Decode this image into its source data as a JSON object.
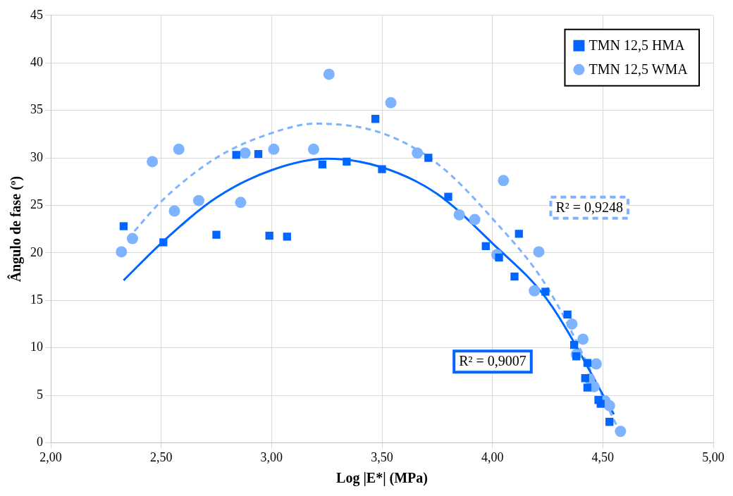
{
  "chart_data": {
    "type": "scatter",
    "xlabel": "Log |E*| (MPa)",
    "ylabel": "Ângulo de fase (º)",
    "xlim": [
      2,
      5
    ],
    "xticks": [
      {
        "value": 2,
        "label": "2,00"
      },
      {
        "value": 2.5,
        "label": "2,50"
      },
      {
        "value": 3,
        "label": "3,00"
      },
      {
        "value": 3.5,
        "label": "3,50"
      },
      {
        "value": 4,
        "label": "4,00"
      },
      {
        "value": 4.5,
        "label": "4,50"
      },
      {
        "value": 5,
        "label": "5,00"
      }
    ],
    "ylim": [
      0,
      45
    ],
    "yticks": [
      0,
      5,
      10,
      15,
      20,
      25,
      30,
      35,
      40,
      45
    ],
    "grid": true,
    "legend": "top right",
    "series": [
      {
        "name": "TMN 12,5 HMA",
        "color": "#0066ff",
        "marker": "square",
        "x": [
          2.33,
          2.51,
          2.75,
          2.84,
          2.94,
          2.99,
          3.07,
          3.23,
          3.34,
          3.47,
          3.5,
          3.71,
          3.8,
          3.97,
          4.03,
          4.1,
          4.12,
          4.24,
          4.34,
          4.37,
          4.38,
          4.43,
          4.42,
          4.43,
          4.48,
          4.49,
          4.53
        ],
        "values": [
          22.8,
          21.1,
          21.9,
          30.3,
          30.4,
          21.8,
          21.7,
          29.3,
          29.6,
          34.1,
          28.8,
          30.0,
          25.9,
          20.7,
          19.5,
          17.5,
          22.0,
          15.9,
          13.5,
          10.3,
          9.1,
          8.4,
          6.8,
          5.8,
          4.5,
          4.1,
          2.2
        ]
      },
      {
        "name": "TMN 12,5 WMA",
        "color": "#7eb3ff",
        "marker": "circle",
        "x": [
          2.32,
          2.37,
          2.46,
          2.56,
          2.58,
          2.67,
          2.86,
          2.88,
          3.01,
          3.19,
          3.26,
          3.54,
          3.66,
          3.85,
          3.92,
          4.02,
          4.05,
          4.19,
          4.21,
          4.36,
          4.38,
          4.41,
          4.47,
          4.44,
          4.46,
          4.51,
          4.53,
          4.58
        ],
        "values": [
          20.1,
          21.5,
          29.6,
          24.4,
          30.9,
          25.5,
          25.3,
          30.5,
          30.9,
          30.9,
          38.8,
          35.8,
          30.5,
          24.0,
          23.5,
          19.8,
          27.6,
          16.0,
          20.1,
          12.5,
          9.3,
          10.9,
          8.3,
          6.7,
          5.9,
          4.4,
          3.9,
          1.2
        ]
      },
      {
        "type": "line",
        "color": "#0066ff",
        "line_style": "solid",
        "marker": "none",
        "x": [
          2.33,
          2.5,
          2.75,
          3.0,
          3.25,
          3.5,
          3.75,
          4.0,
          4.25,
          4.55
        ],
        "values": [
          17.1,
          21.0,
          25.8,
          28.7,
          29.9,
          29.0,
          26.2,
          21.0,
          15.0,
          3.0
        ]
      },
      {
        "type": "line",
        "color": "#7eb3ff",
        "line_style": "dashed",
        "marker": "none",
        "x": [
          2.35,
          2.5,
          2.75,
          3.0,
          3.2,
          3.5,
          3.75,
          4.0,
          4.25,
          4.58
        ],
        "values": [
          21.5,
          25.4,
          30.0,
          32.6,
          33.6,
          32.6,
          29.4,
          23.6,
          16.3,
          1.0
        ]
      }
    ],
    "annotations": [
      "R² = 0,9007",
      "R² = 0,9248"
    ]
  }
}
